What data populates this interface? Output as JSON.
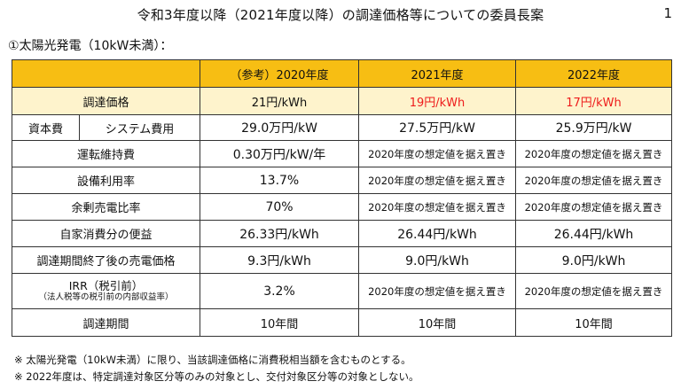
{
  "title": "令和3年度以降（2021年度以降）の調達価格等についての委員長案",
  "page_number": "1",
  "subtitle": "①太陽光発電（10kW未満）：",
  "table": {
    "headers": [
      "",
      "（参考）2020年度",
      "2021年度",
      "2022年度"
    ],
    "price_row": {
      "label": "調達価格",
      "values": [
        "21円/kWh",
        "19円/kWh",
        "17円/kWh"
      ]
    },
    "capital_row": {
      "group_label": "資本費",
      "label": "システム費用",
      "values": [
        "29.0万円/kW",
        "27.5万円/kW",
        "25.9万円/kW"
      ]
    },
    "rows": [
      {
        "label": "運転維持費",
        "values": [
          "0.30万円/kW/年",
          "2020年度の想定値を据え置き",
          "2020年度の想定値を据え置き"
        ]
      },
      {
        "label": "設備利用率",
        "values": [
          "13.7%",
          "2020年度の想定値を据え置き",
          "2020年度の想定値を据え置き"
        ]
      },
      {
        "label": "余剰売電比率",
        "values": [
          "70%",
          "2020年度の想定値を据え置き",
          "2020年度の想定値を据え置き"
        ]
      },
      {
        "label": "自家消費分の便益",
        "values": [
          "26.33円/kWh",
          "26.44円/kWh",
          "26.44円/kWh"
        ]
      },
      {
        "label": "調達期間終了後の売電価格",
        "values": [
          "9.3円/kWh",
          "9.0円/kWh",
          "9.0円/kWh"
        ]
      }
    ],
    "irr_row": {
      "label": "IRR（税引前）",
      "sublabel": "（法人税等の税引前の内部収益率）",
      "values": [
        "3.2%",
        "2020年度の想定値を据え置き",
        "2020年度の想定値を据え置き"
      ]
    },
    "period_row": {
      "label": "調達期間",
      "values": [
        "10年間",
        "10年間",
        "10年間"
      ]
    }
  },
  "notes": [
    "※ 太陽光発電（10kW未満）に限り、当該調達価格に消費税相当額を含むものとする。",
    "※ 2022年度は、特定調達対象区分等のみの対象とし、交付対象区分等の対象としない。"
  ],
  "colors": {
    "header_bg": "#f7be13",
    "price_row_bg": "#fef3cc",
    "highlight_red": "#ee1c1c"
  }
}
